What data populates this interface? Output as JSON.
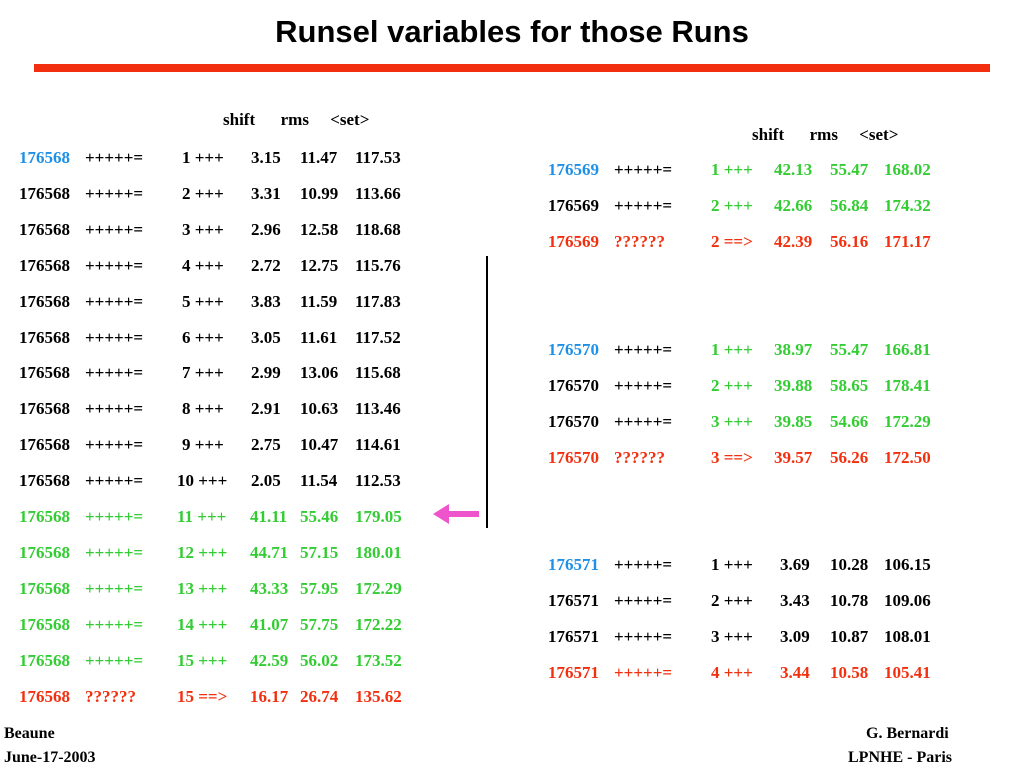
{
  "title": "Runsel variables for those Runs",
  "colors": {
    "title_rule": "#f2300f",
    "black": "#000000",
    "blue": "#1e90e8",
    "green": "#33cc33",
    "red": "#f2300f",
    "arrow": "#ee55cc"
  },
  "left": {
    "header": "shift      rms     <set>",
    "rows": [
      {
        "run": "176568",
        "status": "+++++=",
        "idx": "1 +++",
        "shift": "3.15",
        "rms": "11.47",
        "set": "117.53",
        "color": "black",
        "run_color": "blue"
      },
      {
        "run": "176568",
        "status": "+++++=",
        "idx": "2 +++",
        "shift": "3.31",
        "rms": "10.99",
        "set": "113.66",
        "color": "black",
        "run_color": "black"
      },
      {
        "run": "176568",
        "status": "+++++=",
        "idx": "3 +++",
        "shift": "2.96",
        "rms": "12.58",
        "set": "118.68",
        "color": "black",
        "run_color": "black"
      },
      {
        "run": "176568",
        "status": "+++++=",
        "idx": "4 +++",
        "shift": "2.72",
        "rms": "12.75",
        "set": "115.76",
        "color": "black",
        "run_color": "black"
      },
      {
        "run": "176568",
        "status": "+++++=",
        "idx": "5 +++",
        "shift": "3.83",
        "rms": "11.59",
        "set": "117.83",
        "color": "black",
        "run_color": "black"
      },
      {
        "run": "176568",
        "status": "+++++=",
        "idx": "6 +++",
        "shift": "3.05",
        "rms": "11.61",
        "set": "117.52",
        "color": "black",
        "run_color": "black"
      },
      {
        "run": "176568",
        "status": "+++++=",
        "idx": "7 +++",
        "shift": "2.99",
        "rms": "13.06",
        "set": "115.68",
        "color": "black",
        "run_color": "black"
      },
      {
        "run": "176568",
        "status": "+++++=",
        "idx": "8 +++",
        "shift": "2.91",
        "rms": "10.63",
        "set": "113.46",
        "color": "black",
        "run_color": "black"
      },
      {
        "run": "176568",
        "status": "+++++=",
        "idx": "9 +++",
        "shift": "2.75",
        "rms": "10.47",
        "set": "114.61",
        "color": "black",
        "run_color": "black"
      },
      {
        "run": "176568",
        "status": "+++++=",
        "idx": "10 +++",
        "shift": "2.05",
        "rms": "11.54",
        "set": "112.53",
        "color": "black",
        "run_color": "black"
      },
      {
        "run": "176568",
        "status": "+++++=",
        "idx": "11 +++",
        "shift": "41.11",
        "rms": "55.46",
        "set": "179.05",
        "color": "green",
        "run_color": "green"
      },
      {
        "run": "176568",
        "status": "+++++=",
        "idx": "12 +++",
        "shift": "44.71",
        "rms": "57.15",
        "set": "180.01",
        "color": "green",
        "run_color": "green"
      },
      {
        "run": "176568",
        "status": "+++++=",
        "idx": "13 +++",
        "shift": "43.33",
        "rms": "57.95",
        "set": "172.29",
        "color": "green",
        "run_color": "green"
      },
      {
        "run": "176568",
        "status": "+++++=",
        "idx": "14 +++",
        "shift": "41.07",
        "rms": "57.75",
        "set": "172.22",
        "color": "green",
        "run_color": "green"
      },
      {
        "run": "176568",
        "status": "+++++=",
        "idx": "15 +++",
        "shift": "42.59",
        "rms": "56.02",
        "set": "173.52",
        "color": "green",
        "run_color": "green"
      },
      {
        "run": "176568",
        "status": "??????",
        "idx": "15 ==>",
        "shift": "16.17",
        "rms": "26.74",
        "set": "135.62",
        "color": "red",
        "run_color": "red"
      }
    ]
  },
  "right": {
    "header": "shift      rms     <set>",
    "groups": [
      [
        {
          "run": "176569",
          "status": "+++++=",
          "idx": "1 +++",
          "shift": "42.13",
          "rms": "55.47",
          "set": "168.02",
          "color": "green",
          "run_color": "blue",
          "status_color": "black"
        },
        {
          "run": "176569",
          "status": "+++++=",
          "idx": "2 +++",
          "shift": "42.66",
          "rms": "56.84",
          "set": "174.32",
          "color": "green",
          "run_color": "black",
          "status_color": "black"
        },
        {
          "run": "176569",
          "status": "??????",
          "idx": "2 ==>",
          "shift": "42.39",
          "rms": "56.16",
          "set": "171.17",
          "color": "red",
          "run_color": "red",
          "status_color": "red"
        }
      ],
      [
        {
          "run": "176570",
          "status": "+++++=",
          "idx": "1 +++",
          "shift": "38.97",
          "rms": "55.47",
          "set": "166.81",
          "color": "green",
          "run_color": "blue",
          "status_color": "black"
        },
        {
          "run": "176570",
          "status": "+++++=",
          "idx": "2 +++",
          "shift": "39.88",
          "rms": "58.65",
          "set": "178.41",
          "color": "green",
          "run_color": "black",
          "status_color": "black"
        },
        {
          "run": "176570",
          "status": "+++++=",
          "idx": "3 +++",
          "shift": "39.85",
          "rms": "54.66",
          "set": "172.29",
          "color": "green",
          "run_color": "black",
          "status_color": "black"
        },
        {
          "run": "176570",
          "status": "??????",
          "idx": "3 ==>",
          "shift": "39.57",
          "rms": "56.26",
          "set": "172.50",
          "color": "red",
          "run_color": "red",
          "status_color": "red"
        }
      ],
      [
        {
          "run": "176571",
          "status": "+++++=",
          "idx": "1 +++",
          "shift": "3.69",
          "rms": "10.28",
          "set": "106.15",
          "color": "black",
          "run_color": "blue",
          "status_color": "black"
        },
        {
          "run": "176571",
          "status": "+++++=",
          "idx": "2 +++",
          "shift": "3.43",
          "rms": "10.78",
          "set": "109.06",
          "color": "black",
          "run_color": "black",
          "status_color": "black"
        },
        {
          "run": "176571",
          "status": "+++++=",
          "idx": "3 +++",
          "shift": "3.09",
          "rms": "10.87",
          "set": "108.01",
          "color": "black",
          "run_color": "black",
          "status_color": "black"
        },
        {
          "run": "176571",
          "status": "+++++=",
          "idx": "4 +++",
          "shift": "3.44",
          "rms": "10.58",
          "set": "105.41",
          "color": "red",
          "run_color": "red",
          "status_color": "red"
        }
      ]
    ]
  },
  "arrow_icon": "left-arrow-icon",
  "footer": {
    "left_line1": "Beaune",
    "left_line2": "June-17-2003",
    "right_line1": "G. Bernardi",
    "right_line2": "LPNHE - Paris"
  }
}
